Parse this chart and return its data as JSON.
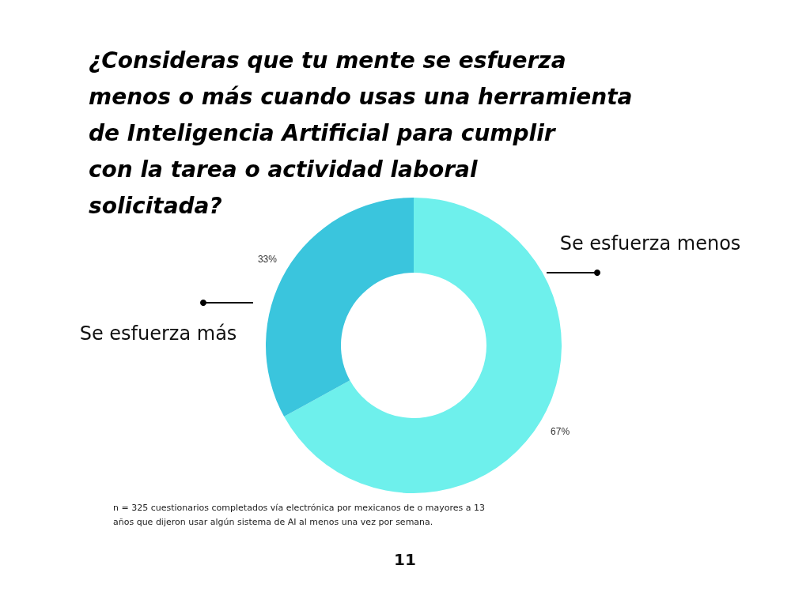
{
  "chart_data": {
    "type": "donut",
    "title": "¿Consideras que tu mente se esfuerza menos o más cuando usas una herramienta de Inteligencia Artificial para cumplir con la tarea o actividad laboral solicitada?",
    "categories": [
      "Se esfuerza menos",
      "Se esfuerza más"
    ],
    "values": [
      67,
      33
    ],
    "colors": [
      "#6ef0ec",
      "#3ac5dd"
    ],
    "value_labels": [
      "67%",
      "33%"
    ],
    "annotations": [
      "n = 325 cuestionarios completados vía electrónica por mexicanos de o mayores a 13 años que dijeron usar algún sistema de AI al menos una vez por semana.",
      "11"
    ],
    "legend": false
  }
}
